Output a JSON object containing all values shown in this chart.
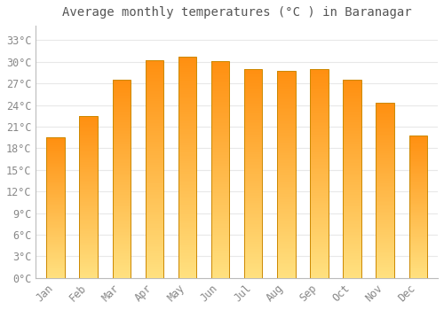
{
  "title": "Average monthly temperatures (°C ) in Baranagar",
  "months": [
    "Jan",
    "Feb",
    "Mar",
    "Apr",
    "May",
    "Jun",
    "Jul",
    "Aug",
    "Sep",
    "Oct",
    "Nov",
    "Dec"
  ],
  "temperatures": [
    19.5,
    22.5,
    27.5,
    30.2,
    30.7,
    30.1,
    29.0,
    28.8,
    29.0,
    27.5,
    24.3,
    19.8
  ],
  "yticks": [
    0,
    3,
    6,
    9,
    12,
    15,
    18,
    21,
    24,
    27,
    30,
    33
  ],
  "ytick_labels": [
    "0°C",
    "3°C",
    "6°C",
    "9°C",
    "12°C",
    "15°C",
    "18°C",
    "21°C",
    "24°C",
    "27°C",
    "30°C",
    "33°C"
  ],
  "ylim": [
    0,
    35
  ],
  "bar_color_top": "#FFA020",
  "bar_color_mid": "#FFB830",
  "bar_color_bottom": "#FFE080",
  "bar_edge_color": "#CC8800",
  "background_color": "#FFFFFF",
  "grid_color": "#E8E8E8",
  "title_color": "#555555",
  "tick_color": "#888888",
  "title_fontsize": 10,
  "tick_fontsize": 8.5,
  "font_family": "monospace",
  "bar_width": 0.55
}
